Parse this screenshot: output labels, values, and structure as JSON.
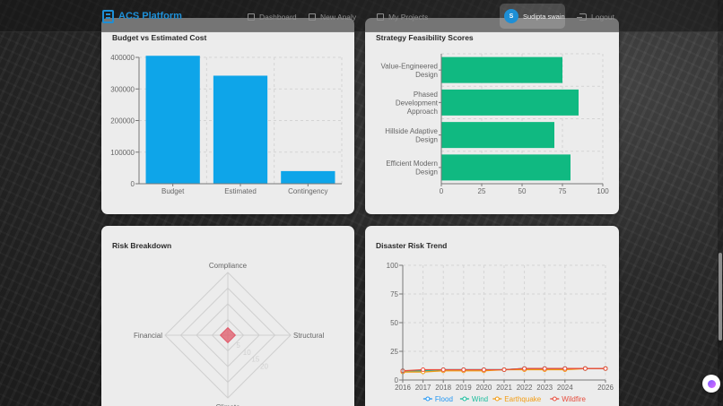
{
  "brand": {
    "name": "ACS Platform",
    "icon": "building-icon",
    "color": "#1e8fd6"
  },
  "nav": {
    "links": [
      {
        "label": "Dashboard",
        "icon": "dashboard-icon"
      },
      {
        "label": "New Analy",
        "icon": "home-icon"
      },
      {
        "label": "My Projects",
        "icon": "folder-icon"
      }
    ],
    "user": {
      "initial": "S",
      "name": "Sudipta swain"
    },
    "logout": {
      "label": "Logout",
      "icon": "logout-icon"
    }
  },
  "cards": {
    "budget": {
      "title": "Budget vs Estimated Cost"
    },
    "strategy": {
      "title": "Strategy Feasibility Scores"
    },
    "risk": {
      "title": "Risk Breakdown"
    },
    "disaster": {
      "title": "Disaster Risk Trend"
    }
  },
  "chart_data": [
    {
      "type": "bar",
      "title": "Budget vs Estimated Cost",
      "categories": [
        "Budget",
        "Estimated",
        "Contingency"
      ],
      "values": [
        405000,
        342000,
        40000
      ],
      "ylim": [
        0,
        400000
      ],
      "yticks": [
        0,
        100000,
        200000,
        300000,
        400000
      ],
      "color": "#0ea5e9",
      "grid": true
    },
    {
      "type": "bar",
      "orientation": "horizontal",
      "title": "Strategy Feasibility Scores",
      "categories": [
        [
          "Value-Engineered",
          "Design"
        ],
        [
          "Phased",
          "Development",
          "Approach"
        ],
        [
          "Hillside Adaptive",
          "Design"
        ],
        [
          "Efficient Modern",
          "Design"
        ]
      ],
      "values": [
        75,
        85,
        70,
        80
      ],
      "xlim": [
        0,
        100
      ],
      "xticks": [
        0,
        25,
        50,
        75,
        100
      ],
      "color": "#10b981",
      "grid": true
    },
    {
      "type": "radar",
      "title": "Risk Breakdown",
      "axes": [
        "Compliance",
        "Structural",
        "Climate",
        "Financial"
      ],
      "values": [
        3,
        3,
        3,
        3
      ],
      "rmax": 25,
      "rings": 4,
      "ring_labels": [
        "5",
        "10",
        "15",
        "20"
      ],
      "color": "#e05a6a"
    },
    {
      "type": "line",
      "title": "Disaster Risk Trend",
      "x": [
        2016,
        2017,
        2018,
        2019,
        2020,
        2021,
        2022,
        2023,
        2024,
        2025,
        2026
      ],
      "xticks": [
        2016,
        2017,
        2018,
        2019,
        2020,
        2021,
        2022,
        2023,
        2024,
        2026
      ],
      "ylim": [
        0,
        100
      ],
      "yticks": [
        0,
        25,
        50,
        75,
        100
      ],
      "legend_position": "bottom",
      "series": [
        {
          "name": "Flood",
          "color": "#2196f3",
          "values": [
            8,
            8,
            9,
            9,
            9,
            9,
            10,
            10,
            10,
            10,
            10
          ]
        },
        {
          "name": "Wind",
          "color": "#1abc9c",
          "values": [
            8,
            8,
            9,
            9,
            9,
            9,
            10,
            10,
            10,
            10,
            10
          ]
        },
        {
          "name": "Earthquake",
          "color": "#f39c12",
          "values": [
            7,
            7,
            8,
            8,
            8,
            9,
            9,
            9,
            9,
            10,
            10
          ]
        },
        {
          "name": "Wildfire",
          "color": "#e74c3c",
          "values": [
            8,
            9,
            9,
            9,
            9,
            9,
            10,
            10,
            10,
            10,
            10
          ]
        }
      ]
    }
  ]
}
